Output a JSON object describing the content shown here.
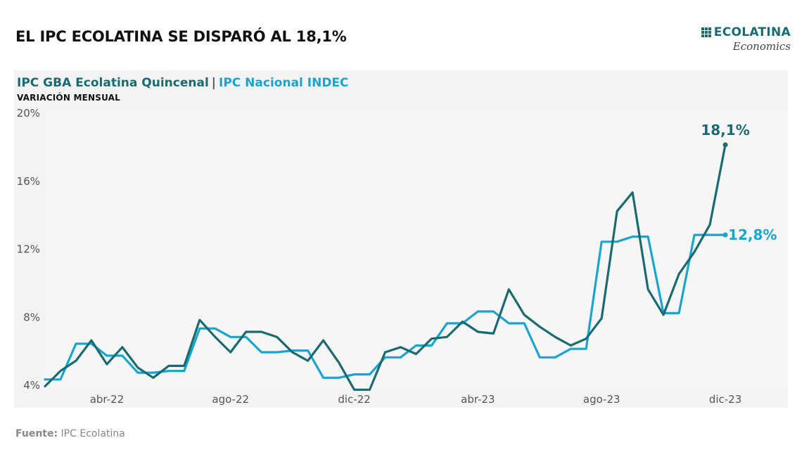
{
  "title": "EL IPC ECOLATINA SE DISPARÓ AL 18,1%",
  "logo": {
    "name": "ECOLATINA",
    "sub": "Economics",
    "color": "#1a6b6f"
  },
  "legend": {
    "series_a": "IPC GBA Ecolatina Quincenal",
    "separator": "|",
    "series_b": "IPC Nacional INDEC"
  },
  "subtitle": "VARIACIÓN MENSUAL",
  "source": {
    "label": "Fuente:",
    "text": "IPC Ecolatina"
  },
  "chart_data": {
    "type": "line",
    "ylim": [
      4,
      20
    ],
    "xlim": [
      0,
      46
    ],
    "yticks": [
      4,
      8,
      12,
      16,
      20
    ],
    "ytick_labels": [
      "4%",
      "8%",
      "12%",
      "16%",
      "20%"
    ],
    "xticks": [
      {
        "x": 4,
        "label": "abr-22"
      },
      {
        "x": 12,
        "label": "ago-22"
      },
      {
        "x": 20,
        "label": "dic-22"
      },
      {
        "x": 28,
        "label": "abr-23"
      },
      {
        "x": 36,
        "label": "ago-23"
      },
      {
        "x": 44,
        "label": "dic-23"
      }
    ],
    "grid": false,
    "series": [
      {
        "name": "IPC GBA Ecolatina Quincenal",
        "color": "#1a6b6f",
        "x": [
          0,
          1,
          2,
          3,
          4,
          5,
          6,
          7,
          8,
          9,
          10,
          11,
          12,
          13,
          14,
          15,
          16,
          17,
          18,
          19,
          20,
          21,
          22,
          23,
          24,
          25,
          26,
          27,
          28,
          29,
          30,
          31,
          32,
          33,
          34,
          35,
          36,
          37,
          38,
          39,
          40,
          41,
          42,
          43,
          44
        ],
        "values": [
          3.9,
          4.8,
          5.4,
          6.6,
          5.2,
          6.2,
          5.0,
          4.4,
          5.1,
          5.1,
          7.8,
          6.8,
          5.9,
          7.1,
          7.1,
          6.8,
          5.9,
          5.4,
          6.6,
          5.3,
          3.7,
          3.7,
          5.9,
          6.2,
          5.8,
          6.7,
          6.8,
          7.7,
          7.1,
          7.0,
          9.6,
          8.1,
          7.4,
          6.8,
          6.3,
          6.7,
          7.9,
          14.2,
          15.3,
          9.6,
          8.1,
          10.5,
          11.8,
          13.4,
          18.1
        ],
        "end_label": "18,1%"
      },
      {
        "name": "IPC Nacional INDEC",
        "color": "#1aa5cf",
        "x": [
          0,
          1,
          2,
          3,
          4,
          5,
          6,
          7,
          8,
          9,
          10,
          11,
          12,
          13,
          14,
          15,
          16,
          17,
          18,
          19,
          20,
          21,
          22,
          23,
          24,
          25,
          26,
          27,
          28,
          29,
          30,
          31,
          32,
          33,
          34,
          35,
          36,
          37,
          38,
          39,
          40,
          41,
          42,
          43,
          44
        ],
        "values": [
          4.3,
          4.3,
          6.4,
          6.4,
          5.7,
          5.7,
          4.7,
          4.7,
          4.8,
          4.8,
          7.3,
          7.3,
          6.8,
          6.8,
          5.9,
          5.9,
          6.0,
          6.0,
          4.4,
          4.4,
          4.6,
          4.6,
          5.6,
          5.6,
          6.3,
          6.3,
          7.6,
          7.6,
          8.3,
          8.3,
          7.6,
          7.6,
          5.6,
          5.6,
          6.1,
          6.1,
          12.4,
          12.4,
          12.7,
          12.7,
          8.2,
          8.2,
          12.8,
          12.8,
          12.8
        ],
        "end_label": "12,8%"
      }
    ]
  }
}
